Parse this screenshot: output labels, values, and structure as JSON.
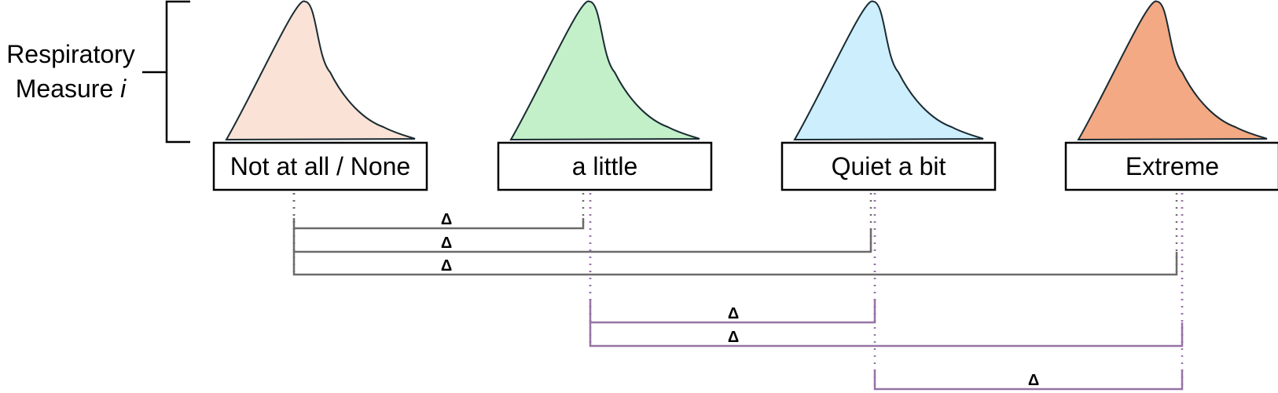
{
  "measure_label": {
    "line1": "Respiratory",
    "line2_prefix": "Measure ",
    "line2_var": "i"
  },
  "categories": [
    {
      "label": "Not at all / None",
      "fill": "#fae3d6"
    },
    {
      "label": "a little",
      "fill": "#c3f0c8"
    },
    {
      "label": "Quiet a bit",
      "fill": "#cdeefc"
    },
    {
      "label": "Extreme",
      "fill": "#f2a984"
    }
  ],
  "comparisons": [
    {
      "from": 0,
      "to": 1,
      "symbol": "Δ",
      "color": "#6b6b6b"
    },
    {
      "from": 0,
      "to": 2,
      "symbol": "Δ",
      "color": "#6b6b6b"
    },
    {
      "from": 0,
      "to": 3,
      "symbol": "Δ",
      "color": "#6b6b6b"
    },
    {
      "from": 1,
      "to": 2,
      "symbol": "Δ",
      "color": "#9673a6"
    },
    {
      "from": 1,
      "to": 3,
      "symbol": "Δ",
      "color": "#9673a6"
    },
    {
      "from": 2,
      "to": 3,
      "symbol": "Δ",
      "color": "#9673a6"
    }
  ],
  "colors": {
    "outline": "#1a2b33",
    "box_border": "#000000"
  }
}
